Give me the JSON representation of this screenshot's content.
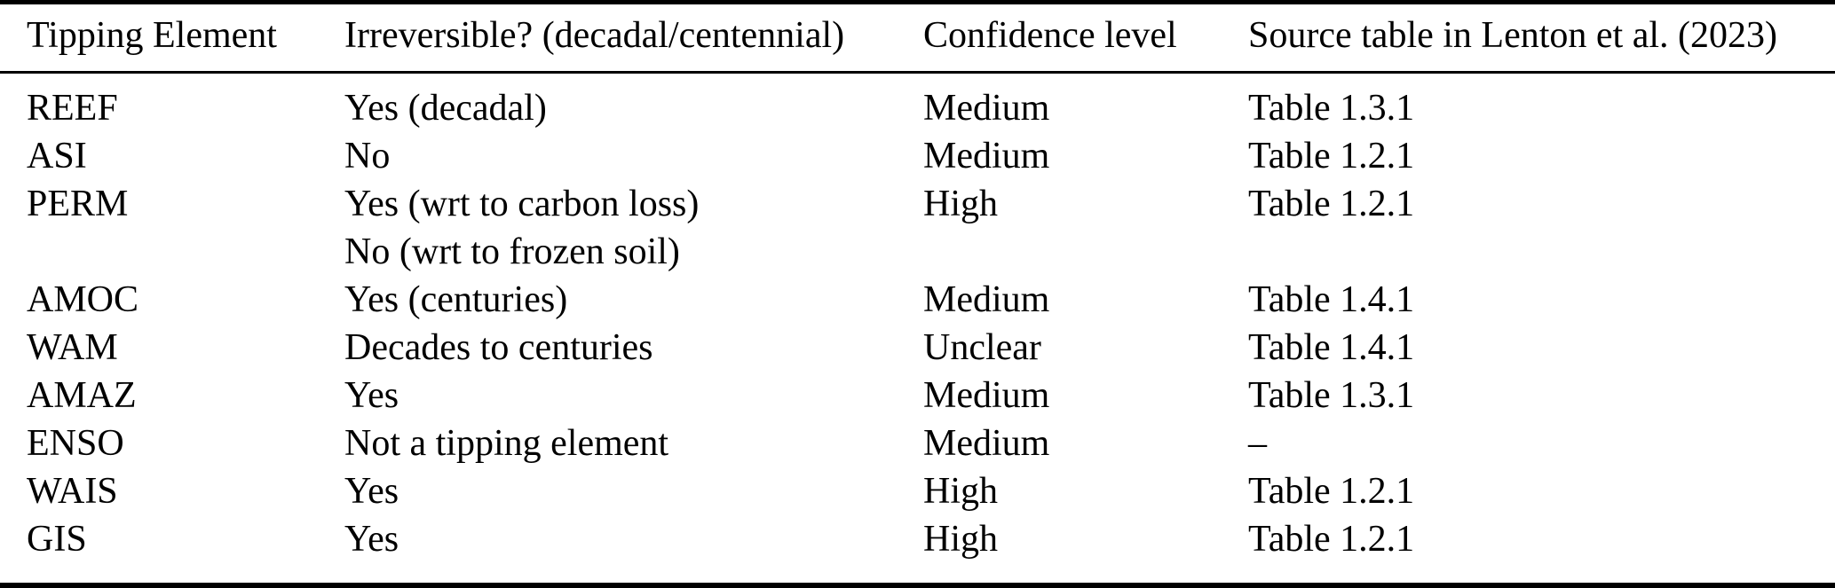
{
  "table": {
    "columns": [
      "Tipping Element",
      "Irreversible? (decadal/centennial)",
      "Confidence level",
      "Source table in Lenton et al. (2023)"
    ],
    "rows": [
      {
        "element": "REEF",
        "irreversible": "Yes (decadal)",
        "confidence": "Medium",
        "source": "Table 1.3.1"
      },
      {
        "element": "ASI",
        "irreversible": "No",
        "confidence": "Medium",
        "source": "Table 1.2.1"
      },
      {
        "element": "PERM",
        "irreversible": "Yes (wrt to carbon loss)\nNo (wrt to frozen soil)",
        "confidence": "High",
        "source": "Table 1.2.1"
      },
      {
        "element": "AMOC",
        "irreversible": "Yes (centuries)",
        "confidence": "Medium",
        "source": "Table 1.4.1"
      },
      {
        "element": "WAM",
        "irreversible": "Decades to centuries",
        "confidence": "Unclear",
        "source": "Table 1.4.1"
      },
      {
        "element": "AMAZ",
        "irreversible": "Yes",
        "confidence": "Medium",
        "source": "Table 1.3.1"
      },
      {
        "element": "ENSO",
        "irreversible": "Not a tipping element",
        "confidence": "Medium",
        "source": "–"
      },
      {
        "element": "WAIS",
        "irreversible": "Yes",
        "confidence": "High",
        "source": "Table 1.2.1"
      },
      {
        "element": "GIS",
        "irreversible": "Yes",
        "confidence": "High",
        "source": "Table 1.2.1"
      }
    ],
    "text_color": "#000000",
    "rule_color": "#000000",
    "background_color": "#ffffff"
  }
}
